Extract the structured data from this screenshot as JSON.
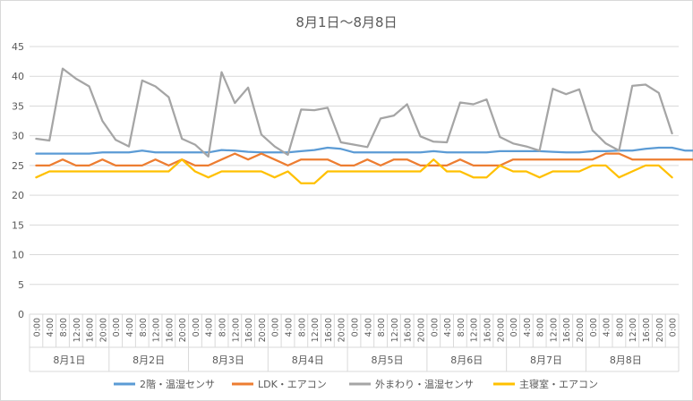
{
  "chart_data": {
    "type": "line",
    "title": "8月1日～8月8日",
    "ylim": [
      0,
      45
    ],
    "yticks": [
      0,
      5,
      10,
      15,
      20,
      25,
      30,
      35,
      40,
      45
    ],
    "grid": true,
    "legend_position": "bottom",
    "days": [
      "8月1日",
      "8月2日",
      "8月3日",
      "8月4日",
      "8月5日",
      "8月6日",
      "8月7日",
      "8月8日"
    ],
    "time_labels": [
      "0:00",
      "4:00",
      "8:00",
      "12:00",
      "16:00",
      "20:00"
    ],
    "series": [
      {
        "name": "2階・温湿センサ",
        "color": "#5B9BD5",
        "values": [
          27,
          27,
          27,
          27,
          27,
          27.2,
          27.2,
          27.2,
          27.5,
          27.2,
          27.2,
          27.2,
          27.2,
          27.2,
          27.6,
          27.5,
          27.3,
          27.2,
          27.2,
          27.2,
          27.4,
          27.6,
          28,
          27.8,
          27.2,
          27.2,
          27.2,
          27.2,
          27.2,
          27.2,
          27.4,
          27.2,
          27.2,
          27.2,
          27.2,
          27.4,
          27.4,
          27.4,
          27.4,
          27.3,
          27.2,
          27.2,
          27.4,
          27.4,
          27.5,
          27.5,
          27.8,
          28,
          28,
          27.5,
          27.5,
          27.5,
          27.8,
          28,
          28,
          28.2,
          27.8,
          27.8,
          27.8,
          27.8,
          28
        ]
      },
      {
        "name": "LDK・エアコン",
        "color": "#ED7D31",
        "values": [
          25,
          25,
          26,
          25,
          25,
          26,
          25,
          25,
          25,
          26,
          25,
          26,
          25,
          25,
          26,
          27,
          26,
          27,
          26,
          25,
          26,
          26,
          26,
          25,
          25,
          26,
          25,
          26,
          26,
          25,
          25,
          25,
          26,
          25,
          25,
          25,
          26,
          26,
          26,
          26,
          26,
          26,
          26,
          27,
          27,
          26,
          26,
          26,
          26,
          26,
          26,
          26,
          26,
          26,
          26,
          26,
          26,
          26,
          26,
          26,
          26
        ]
      },
      {
        "name": "外まわり・温湿センサ",
        "color": "#A5A5A5",
        "values": [
          29.5,
          29.2,
          41.3,
          39.6,
          38.3,
          32.5,
          29.3,
          28.2,
          39.3,
          38.3,
          36.5,
          29.5,
          28.5,
          26.5,
          40.7,
          35.5,
          38.1,
          30.2,
          28.2,
          26.8,
          34.4,
          34.3,
          34.7,
          28.9,
          28.5,
          28.1,
          32.9,
          33.4,
          35.3,
          29.9,
          29.0,
          28.9,
          35.6,
          35.3,
          36.1,
          29.8,
          28.7,
          28.2,
          27.5,
          37.9,
          37.0,
          37.8,
          30.9,
          28.7,
          27.5,
          38.4,
          38.6,
          37.2,
          30.4
        ]
      },
      {
        "name": "主寝室・エアコン",
        "color": "#FFC000",
        "values": [
          23,
          24,
          24,
          24,
          24,
          24,
          24,
          24,
          24,
          24,
          24,
          26,
          24,
          23,
          24,
          24,
          24,
          24,
          23,
          24,
          22,
          22,
          24,
          24,
          24,
          24,
          24,
          24,
          24,
          24,
          26,
          24,
          24,
          23,
          23,
          25,
          24,
          24,
          23,
          24,
          24,
          24,
          25,
          25,
          23,
          24,
          25,
          25,
          23
        ]
      }
    ]
  }
}
